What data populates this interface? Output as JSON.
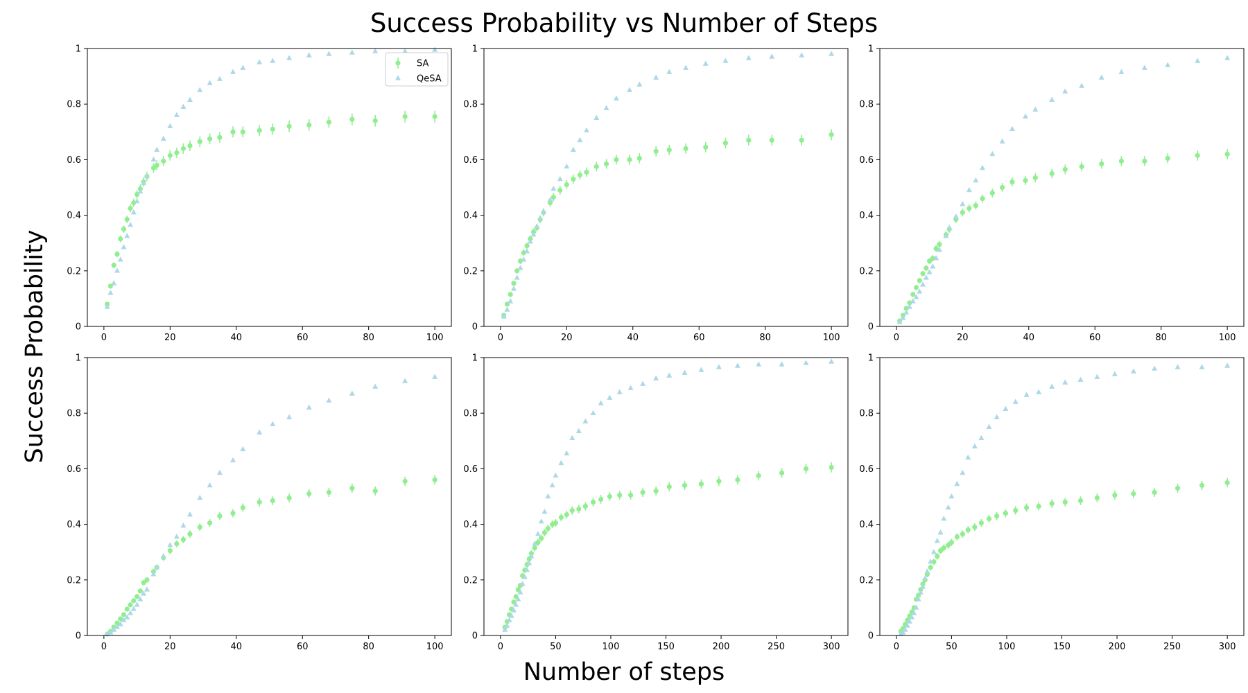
{
  "figure": {
    "title": "Success Probability vs Number of Steps",
    "xlabel": "Number of steps",
    "ylabel": "Success Probability"
  },
  "colors": {
    "SA": "#90ee90",
    "QeSA": "#add8e6"
  },
  "chart_data": [
    {
      "type": "scatter",
      "xlim": [
        -5,
        105
      ],
      "ylim": [
        0,
        1
      ],
      "xticks": [
        0,
        20,
        40,
        60,
        80,
        100
      ],
      "yticks": [
        0.0,
        0.2,
        0.4,
        0.6,
        0.8,
        1.0
      ],
      "legend": {
        "position": "top-right",
        "entries": [
          "SA",
          "QeSA"
        ]
      },
      "series": [
        {
          "name": "SA",
          "marker": "circle",
          "errorbars": true,
          "x": [
            1,
            2,
            3,
            4,
            5,
            6,
            7,
            8,
            9,
            10,
            11,
            12,
            13,
            15,
            16,
            18,
            20,
            22,
            24,
            26,
            29,
            32,
            35,
            39,
            42,
            47,
            51,
            56,
            62,
            68,
            75,
            82,
            91,
            100
          ],
          "y": [
            0.08,
            0.145,
            0.22,
            0.26,
            0.315,
            0.35,
            0.385,
            0.425,
            0.445,
            0.475,
            0.495,
            0.52,
            0.54,
            0.57,
            0.58,
            0.595,
            0.615,
            0.625,
            0.64,
            0.65,
            0.665,
            0.675,
            0.68,
            0.7,
            0.7,
            0.705,
            0.71,
            0.72,
            0.725,
            0.735,
            0.745,
            0.74,
            0.755,
            0.755
          ]
        },
        {
          "name": "QeSA",
          "marker": "triangle",
          "errorbars": false,
          "x": [
            1,
            2,
            3,
            4,
            5,
            6,
            7,
            8,
            9,
            10,
            11,
            12,
            13,
            15,
            16,
            18,
            20,
            22,
            24,
            26,
            29,
            32,
            35,
            39,
            42,
            47,
            51,
            56,
            62,
            68,
            75,
            82,
            91,
            100
          ],
          "y": [
            0.07,
            0.12,
            0.155,
            0.2,
            0.24,
            0.285,
            0.325,
            0.365,
            0.41,
            0.45,
            0.485,
            0.515,
            0.54,
            0.6,
            0.635,
            0.675,
            0.72,
            0.76,
            0.79,
            0.815,
            0.85,
            0.875,
            0.89,
            0.915,
            0.93,
            0.95,
            0.955,
            0.965,
            0.975,
            0.98,
            0.985,
            0.99,
            0.99,
            0.995
          ]
        }
      ]
    },
    {
      "type": "scatter",
      "xlim": [
        -5,
        105
      ],
      "ylim": [
        0,
        1
      ],
      "xticks": [
        0,
        20,
        40,
        60,
        80,
        100
      ],
      "yticks": [
        0.0,
        0.2,
        0.4,
        0.6,
        0.8,
        1.0
      ],
      "series": [
        {
          "name": "SA",
          "marker": "circle",
          "errorbars": true,
          "x": [
            1,
            2,
            3,
            4,
            5,
            6,
            7,
            8,
            9,
            10,
            11,
            12,
            13,
            15,
            16,
            18,
            20,
            22,
            24,
            26,
            29,
            32,
            35,
            39,
            42,
            47,
            51,
            56,
            62,
            68,
            75,
            82,
            91,
            100
          ],
          "y": [
            0.04,
            0.08,
            0.115,
            0.155,
            0.2,
            0.235,
            0.265,
            0.29,
            0.315,
            0.34,
            0.355,
            0.385,
            0.41,
            0.445,
            0.465,
            0.49,
            0.51,
            0.53,
            0.545,
            0.555,
            0.575,
            0.585,
            0.6,
            0.6,
            0.605,
            0.63,
            0.635,
            0.64,
            0.645,
            0.66,
            0.67,
            0.67,
            0.67,
            0.69
          ]
        },
        {
          "name": "QeSA",
          "marker": "triangle",
          "errorbars": false,
          "x": [
            1,
            2,
            3,
            4,
            5,
            6,
            7,
            8,
            9,
            10,
            11,
            12,
            13,
            15,
            16,
            18,
            20,
            22,
            24,
            26,
            29,
            32,
            35,
            39,
            42,
            47,
            51,
            56,
            62,
            68,
            75,
            82,
            91,
            100
          ],
          "y": [
            0.035,
            0.06,
            0.09,
            0.135,
            0.175,
            0.21,
            0.24,
            0.27,
            0.305,
            0.33,
            0.36,
            0.39,
            0.415,
            0.455,
            0.495,
            0.53,
            0.575,
            0.635,
            0.67,
            0.705,
            0.75,
            0.785,
            0.82,
            0.85,
            0.87,
            0.895,
            0.915,
            0.93,
            0.945,
            0.955,
            0.965,
            0.97,
            0.975,
            0.98
          ]
        }
      ]
    },
    {
      "type": "scatter",
      "xlim": [
        -5,
        105
      ],
      "ylim": [
        0,
        1
      ],
      "xticks": [
        0,
        20,
        40,
        60,
        80,
        100
      ],
      "yticks": [
        0.0,
        0.2,
        0.4,
        0.6,
        0.8,
        1.0
      ],
      "series": [
        {
          "name": "SA",
          "marker": "circle",
          "errorbars": true,
          "x": [
            1,
            2,
            3,
            4,
            5,
            6,
            7,
            8,
            9,
            10,
            11,
            12,
            13,
            15,
            16,
            18,
            20,
            22,
            24,
            26,
            29,
            32,
            35,
            39,
            42,
            47,
            51,
            56,
            62,
            68,
            75,
            82,
            91,
            100
          ],
          "y": [
            0.02,
            0.04,
            0.065,
            0.085,
            0.115,
            0.14,
            0.165,
            0.19,
            0.21,
            0.235,
            0.245,
            0.28,
            0.295,
            0.33,
            0.35,
            0.385,
            0.41,
            0.425,
            0.435,
            0.46,
            0.48,
            0.5,
            0.52,
            0.525,
            0.535,
            0.55,
            0.565,
            0.575,
            0.585,
            0.595,
            0.595,
            0.605,
            0.615,
            0.62
          ]
        },
        {
          "name": "QeSA",
          "marker": "triangle",
          "errorbars": false,
          "x": [
            1,
            2,
            3,
            4,
            5,
            6,
            7,
            8,
            9,
            10,
            11,
            12,
            13,
            15,
            16,
            18,
            20,
            22,
            24,
            26,
            29,
            32,
            35,
            39,
            42,
            47,
            51,
            56,
            62,
            68,
            75,
            82,
            91,
            100
          ],
          "y": [
            0.015,
            0.03,
            0.05,
            0.07,
            0.09,
            0.105,
            0.125,
            0.15,
            0.175,
            0.195,
            0.215,
            0.245,
            0.275,
            0.325,
            0.355,
            0.395,
            0.44,
            0.49,
            0.525,
            0.57,
            0.62,
            0.665,
            0.71,
            0.755,
            0.78,
            0.815,
            0.845,
            0.865,
            0.895,
            0.915,
            0.93,
            0.94,
            0.955,
            0.965
          ]
        }
      ]
    },
    {
      "type": "scatter",
      "xlim": [
        -5,
        105
      ],
      "ylim": [
        0,
        1
      ],
      "xticks": [
        0,
        20,
        40,
        60,
        80,
        100
      ],
      "yticks": [
        0.0,
        0.2,
        0.4,
        0.6,
        0.8,
        1.0
      ],
      "series": [
        {
          "name": "SA",
          "marker": "circle",
          "errorbars": true,
          "x": [
            1,
            2,
            3,
            4,
            5,
            6,
            7,
            8,
            9,
            10,
            11,
            12,
            13,
            15,
            16,
            18,
            20,
            22,
            24,
            26,
            29,
            32,
            35,
            39,
            42,
            47,
            51,
            56,
            62,
            68,
            75,
            82,
            91,
            100
          ],
          "y": [
            0.005,
            0.015,
            0.03,
            0.045,
            0.06,
            0.075,
            0.095,
            0.11,
            0.125,
            0.14,
            0.16,
            0.19,
            0.2,
            0.23,
            0.245,
            0.28,
            0.305,
            0.33,
            0.345,
            0.365,
            0.39,
            0.405,
            0.43,
            0.44,
            0.46,
            0.48,
            0.485,
            0.495,
            0.51,
            0.515,
            0.53,
            0.52,
            0.555,
            0.56
          ]
        },
        {
          "name": "QeSA",
          "marker": "triangle",
          "errorbars": false,
          "x": [
            1,
            2,
            3,
            4,
            5,
            6,
            7,
            8,
            9,
            10,
            11,
            12,
            13,
            15,
            16,
            18,
            20,
            22,
            24,
            26,
            29,
            32,
            35,
            39,
            42,
            47,
            51,
            56,
            62,
            68,
            75,
            82,
            91,
            100
          ],
          "y": [
            0.005,
            0.01,
            0.02,
            0.03,
            0.04,
            0.055,
            0.065,
            0.08,
            0.095,
            0.11,
            0.13,
            0.15,
            0.165,
            0.22,
            0.245,
            0.285,
            0.325,
            0.355,
            0.395,
            0.435,
            0.495,
            0.54,
            0.585,
            0.63,
            0.67,
            0.73,
            0.76,
            0.785,
            0.82,
            0.845,
            0.87,
            0.895,
            0.915,
            0.93
          ]
        }
      ]
    },
    {
      "type": "scatter",
      "xlim": [
        -15,
        315
      ],
      "ylim": [
        0,
        1
      ],
      "xticks": [
        0,
        50,
        100,
        150,
        200,
        250,
        300
      ],
      "yticks": [
        0.0,
        0.2,
        0.4,
        0.6,
        0.8,
        1.0
      ],
      "series": [
        {
          "name": "SA",
          "marker": "circle",
          "errorbars": true,
          "x": [
            4,
            6,
            8,
            10,
            12,
            14,
            16,
            18,
            20,
            22,
            24,
            26,
            28,
            31,
            34,
            37,
            40,
            43,
            47,
            50,
            55,
            60,
            65,
            71,
            77,
            84,
            91,
            99,
            108,
            118,
            129,
            141,
            153,
            167,
            182,
            198,
            215,
            234,
            255,
            277,
            300
          ],
          "y": [
            0.03,
            0.05,
            0.075,
            0.095,
            0.12,
            0.14,
            0.165,
            0.18,
            0.215,
            0.235,
            0.255,
            0.275,
            0.295,
            0.315,
            0.335,
            0.35,
            0.37,
            0.385,
            0.4,
            0.405,
            0.425,
            0.435,
            0.45,
            0.455,
            0.465,
            0.48,
            0.49,
            0.5,
            0.505,
            0.505,
            0.515,
            0.52,
            0.535,
            0.54,
            0.545,
            0.555,
            0.56,
            0.575,
            0.585,
            0.6,
            0.605
          ]
        },
        {
          "name": "QeSA",
          "marker": "triangle",
          "errorbars": false,
          "x": [
            4,
            6,
            8,
            10,
            12,
            14,
            16,
            18,
            20,
            22,
            24,
            26,
            28,
            31,
            34,
            37,
            40,
            43,
            47,
            50,
            55,
            60,
            65,
            71,
            77,
            84,
            91,
            99,
            108,
            118,
            129,
            141,
            153,
            167,
            182,
            198,
            215,
            234,
            255,
            277,
            300
          ],
          "y": [
            0.02,
            0.035,
            0.055,
            0.07,
            0.09,
            0.11,
            0.13,
            0.155,
            0.185,
            0.21,
            0.235,
            0.26,
            0.285,
            0.33,
            0.365,
            0.41,
            0.445,
            0.5,
            0.54,
            0.575,
            0.62,
            0.655,
            0.71,
            0.735,
            0.77,
            0.8,
            0.835,
            0.855,
            0.875,
            0.89,
            0.905,
            0.925,
            0.935,
            0.945,
            0.955,
            0.965,
            0.97,
            0.975,
            0.975,
            0.98,
            0.985
          ]
        }
      ]
    },
    {
      "type": "scatter",
      "xlim": [
        -15,
        315
      ],
      "ylim": [
        0,
        1
      ],
      "xticks": [
        0,
        50,
        100,
        150,
        200,
        250,
        300
      ],
      "yticks": [
        0.0,
        0.2,
        0.4,
        0.6,
        0.8,
        1.0
      ],
      "series": [
        {
          "name": "SA",
          "marker": "circle",
          "errorbars": true,
          "x": [
            4,
            6,
            8,
            10,
            12,
            14,
            16,
            18,
            20,
            22,
            24,
            26,
            28,
            31,
            34,
            37,
            40,
            43,
            47,
            50,
            55,
            60,
            65,
            71,
            77,
            84,
            91,
            99,
            108,
            118,
            129,
            141,
            153,
            167,
            182,
            198,
            215,
            234,
            255,
            277,
            300
          ],
          "y": [
            0.015,
            0.025,
            0.04,
            0.055,
            0.07,
            0.085,
            0.1,
            0.13,
            0.145,
            0.165,
            0.185,
            0.2,
            0.22,
            0.245,
            0.265,
            0.285,
            0.305,
            0.315,
            0.325,
            0.335,
            0.355,
            0.365,
            0.38,
            0.39,
            0.405,
            0.42,
            0.43,
            0.44,
            0.45,
            0.46,
            0.465,
            0.475,
            0.48,
            0.485,
            0.495,
            0.505,
            0.51,
            0.515,
            0.53,
            0.54,
            0.55
          ]
        },
        {
          "name": "QeSA",
          "marker": "triangle",
          "errorbars": false,
          "x": [
            4,
            6,
            8,
            10,
            12,
            14,
            16,
            18,
            20,
            22,
            24,
            26,
            28,
            31,
            34,
            37,
            40,
            43,
            47,
            50,
            55,
            60,
            65,
            71,
            77,
            84,
            91,
            99,
            108,
            118,
            129,
            141,
            153,
            167,
            182,
            198,
            215,
            234,
            255,
            277,
            300
          ],
          "y": [
            0.005,
            0.01,
            0.02,
            0.035,
            0.05,
            0.065,
            0.08,
            0.1,
            0.13,
            0.155,
            0.175,
            0.205,
            0.23,
            0.265,
            0.3,
            0.34,
            0.37,
            0.42,
            0.46,
            0.5,
            0.545,
            0.585,
            0.64,
            0.68,
            0.71,
            0.75,
            0.785,
            0.815,
            0.84,
            0.865,
            0.875,
            0.895,
            0.91,
            0.92,
            0.93,
            0.94,
            0.95,
            0.96,
            0.965,
            0.965,
            0.97
          ]
        }
      ]
    }
  ]
}
